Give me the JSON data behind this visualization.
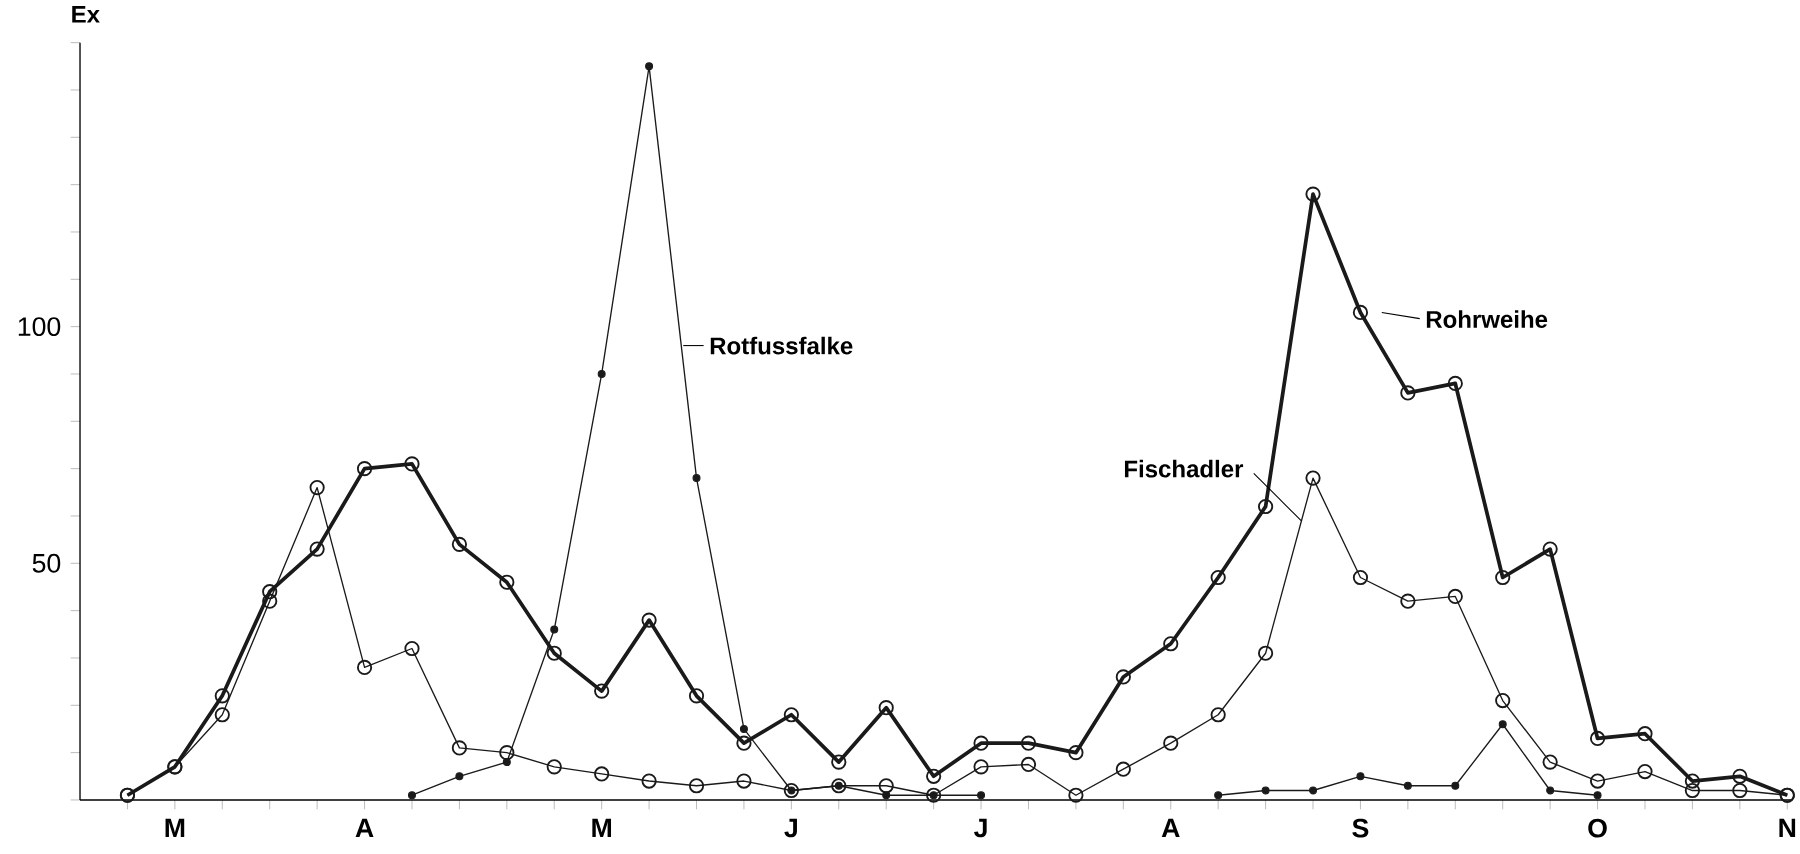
{
  "chart_data": {
    "type": "line",
    "ylabel": "Ex",
    "categories": [
      null,
      "M",
      null,
      null,
      null,
      "A",
      null,
      null,
      null,
      null,
      "M",
      null,
      null,
      null,
      "J",
      null,
      null,
      null,
      "J",
      null,
      null,
      null,
      "A",
      null,
      null,
      null,
      "S",
      null,
      null,
      null,
      null,
      "O",
      null,
      null,
      null,
      "N"
    ],
    "series": [
      {
        "name": "Rohrweihe",
        "color": "#1a1a1a",
        "marker": "circle",
        "values": [
          1,
          7,
          22,
          44,
          53,
          70,
          71,
          54,
          46,
          31,
          23,
          38,
          22,
          12,
          18,
          8,
          19.5,
          5,
          12,
          12,
          10,
          26,
          33,
          47,
          62,
          128,
          103,
          86,
          88,
          47,
          53,
          13,
          14,
          4,
          5,
          1
        ]
      },
      {
        "name": "Fischadler",
        "color": "#1a1a1a",
        "marker": "circle",
        "values": [
          1,
          7,
          18,
          42,
          66,
          28,
          32,
          11,
          10,
          7,
          5.5,
          4,
          3,
          4,
          2,
          3,
          3,
          1,
          7,
          7.5,
          1,
          6.5,
          12,
          18,
          31,
          68,
          47,
          42,
          43,
          21,
          8,
          4,
          6,
          2,
          2,
          1
        ]
      },
      {
        "name": "Rotfussfalke",
        "color": "#1a1a1a",
        "marker": "circle",
        "values": [
          null,
          null,
          null,
          null,
          null,
          null,
          1,
          5,
          8,
          36,
          90,
          155,
          68,
          15,
          2,
          3,
          1,
          1,
          1,
          null,
          null,
          null,
          null,
          1,
          2,
          2,
          5,
          3,
          3,
          16,
          2,
          1,
          null,
          null,
          null,
          null
        ]
      }
    ],
    "ylim": [
      0,
      160
    ],
    "yticks": [
      {
        "value": 0,
        "label": null
      },
      {
        "value": 10,
        "label": null
      },
      {
        "value": 20,
        "label": null
      },
      {
        "value": 30,
        "label": null
      },
      {
        "value": 40,
        "label": null
      },
      50,
      {
        "value": 60,
        "label": null
      },
      {
        "value": 70,
        "label": null
      },
      {
        "value": 80,
        "label": null
      },
      {
        "value": 90,
        "label": null
      },
      100,
      {
        "value": 110,
        "label": null
      },
      {
        "value": 120,
        "label": null
      },
      {
        "value": 130,
        "label": null
      },
      {
        "value": 140,
        "label": null
      },
      {
        "value": 150,
        "label": null
      },
      {
        "value": 160,
        "label": null
      }
    ]
  }
}
